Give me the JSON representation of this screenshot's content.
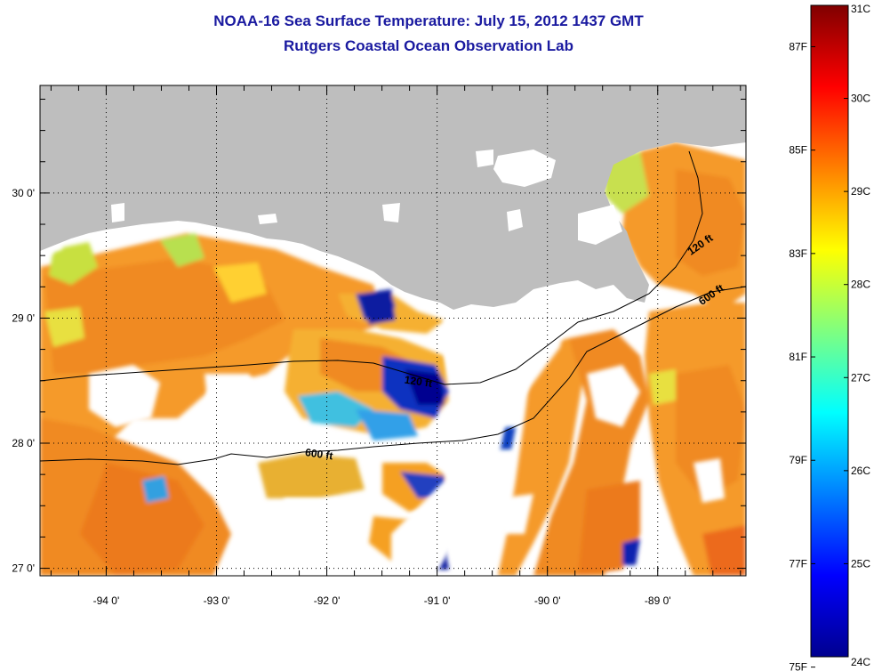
{
  "title": {
    "line1": "NOAA-16 Sea Surface Temperature:  July 15, 2012 1437 GMT",
    "line2": "Rutgers Coastal Ocean Observation Lab"
  },
  "map": {
    "longitude_ticks": [
      "-94 0'",
      "-93 0'",
      "-92 0'",
      "-91 0'",
      "-90 0'",
      "-89 0'"
    ],
    "latitude_ticks": [
      "30 0'",
      "29 0'",
      "28 0'",
      "27 0'"
    ],
    "lon_values": [
      -94,
      -93,
      -92,
      -91,
      -90,
      -89
    ],
    "lat_values": [
      30,
      29,
      28,
      27
    ],
    "lon_range": [
      -94.6,
      -88.2
    ],
    "lat_range": [
      26.94,
      30.86
    ],
    "isobath_labels": [
      {
        "text": "120 ft",
        "lon": -91.3,
        "lat": 28.48
      },
      {
        "text": "600 ft",
        "lon": -92.2,
        "lat": 27.9
      },
      {
        "text": "120 ft",
        "lon": -88.7,
        "lat": 29.5
      },
      {
        "text": "600 ft",
        "lon": -88.6,
        "lat": 29.1
      }
    ],
    "colors": {
      "land": "#bebebe",
      "no_data": "#ffffff",
      "isobath": "#000000"
    }
  },
  "colorbar": {
    "fahrenheit_labels": [
      "87F",
      "85F",
      "83F",
      "81F",
      "79F",
      "77F",
      "75F"
    ],
    "fahrenheit_values": [
      87,
      85,
      83,
      81,
      79,
      77,
      75
    ],
    "celsius_labels": [
      "31C",
      "30C",
      "29C",
      "28C",
      "27C",
      "26C",
      "25C",
      "24C"
    ],
    "celsius_values": [
      31,
      30,
      29,
      28,
      27,
      26,
      25,
      24
    ],
    "range_c": [
      24,
      31
    ]
  }
}
